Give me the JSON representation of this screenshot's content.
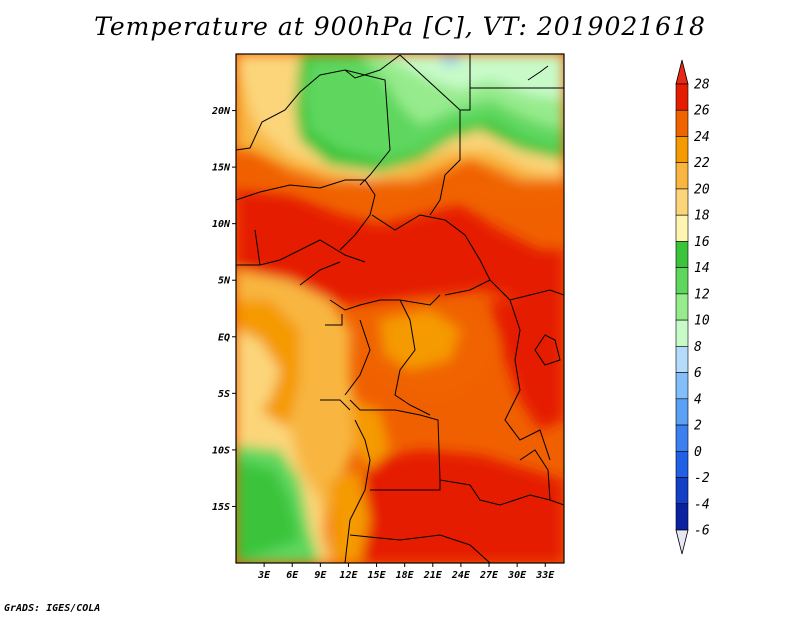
{
  "title": "Temperature at 900hPa [C], VT: 2019021618",
  "credit": "GrADS: IGES/COLA",
  "map": {
    "lon_range": [
      0,
      35
    ],
    "lat_range": [
      -20,
      25
    ],
    "lat_ticks": [
      {
        "value": 20,
        "label": "20N"
      },
      {
        "value": 15,
        "label": "15N"
      },
      {
        "value": 10,
        "label": "10N"
      },
      {
        "value": 5,
        "label": "5N"
      },
      {
        "value": 0,
        "label": "EQ"
      },
      {
        "value": -5,
        "label": "5S"
      },
      {
        "value": -10,
        "label": "10S"
      },
      {
        "value": -15,
        "label": "15S"
      }
    ],
    "lon_ticks": [
      {
        "value": 3,
        "label": "3E"
      },
      {
        "value": 6,
        "label": "6E"
      },
      {
        "value": 9,
        "label": "9E"
      },
      {
        "value": 12,
        "label": "12E"
      },
      {
        "value": 15,
        "label": "15E"
      },
      {
        "value": 18,
        "label": "18E"
      },
      {
        "value": 21,
        "label": "21E"
      },
      {
        "value": 24,
        "label": "24E"
      },
      {
        "value": 27,
        "label": "27E"
      },
      {
        "value": 30,
        "label": "30E"
      },
      {
        "value": 33,
        "label": "33E"
      }
    ]
  },
  "colorbar": {
    "levels": [
      {
        "value": "28",
        "color": "#f03c00"
      },
      {
        "value": "26",
        "color": "#e51d00"
      },
      {
        "value": "24",
        "color": "#f06400"
      },
      {
        "value": "22",
        "color": "#f59a00"
      },
      {
        "value": "20",
        "color": "#f8b640"
      },
      {
        "value": "18",
        "color": "#fcd57a"
      },
      {
        "value": "16",
        "color": "#fff5b0"
      },
      {
        "value": "14",
        "color": "#3bc43b"
      },
      {
        "value": "12",
        "color": "#5fd75f"
      },
      {
        "value": "10",
        "color": "#96eb8c"
      },
      {
        "value": "8",
        "color": "#c8fac8"
      },
      {
        "value": "6",
        "color": "#b4dcfa"
      },
      {
        "value": "4",
        "color": "#82befa"
      },
      {
        "value": "2",
        "color": "#5aa0f5"
      },
      {
        "value": "0",
        "color": "#3c80f0"
      },
      {
        "value": "-2",
        "color": "#2060e6"
      },
      {
        "value": "-4",
        "color": "#1440c8"
      },
      {
        "value": "-6",
        "color": "#0a22a0"
      }
    ],
    "bottom_colors": [
      "#0a1a7a"
    ],
    "over_color": "#e62814",
    "under_color": "#e6e6f5"
  }
}
